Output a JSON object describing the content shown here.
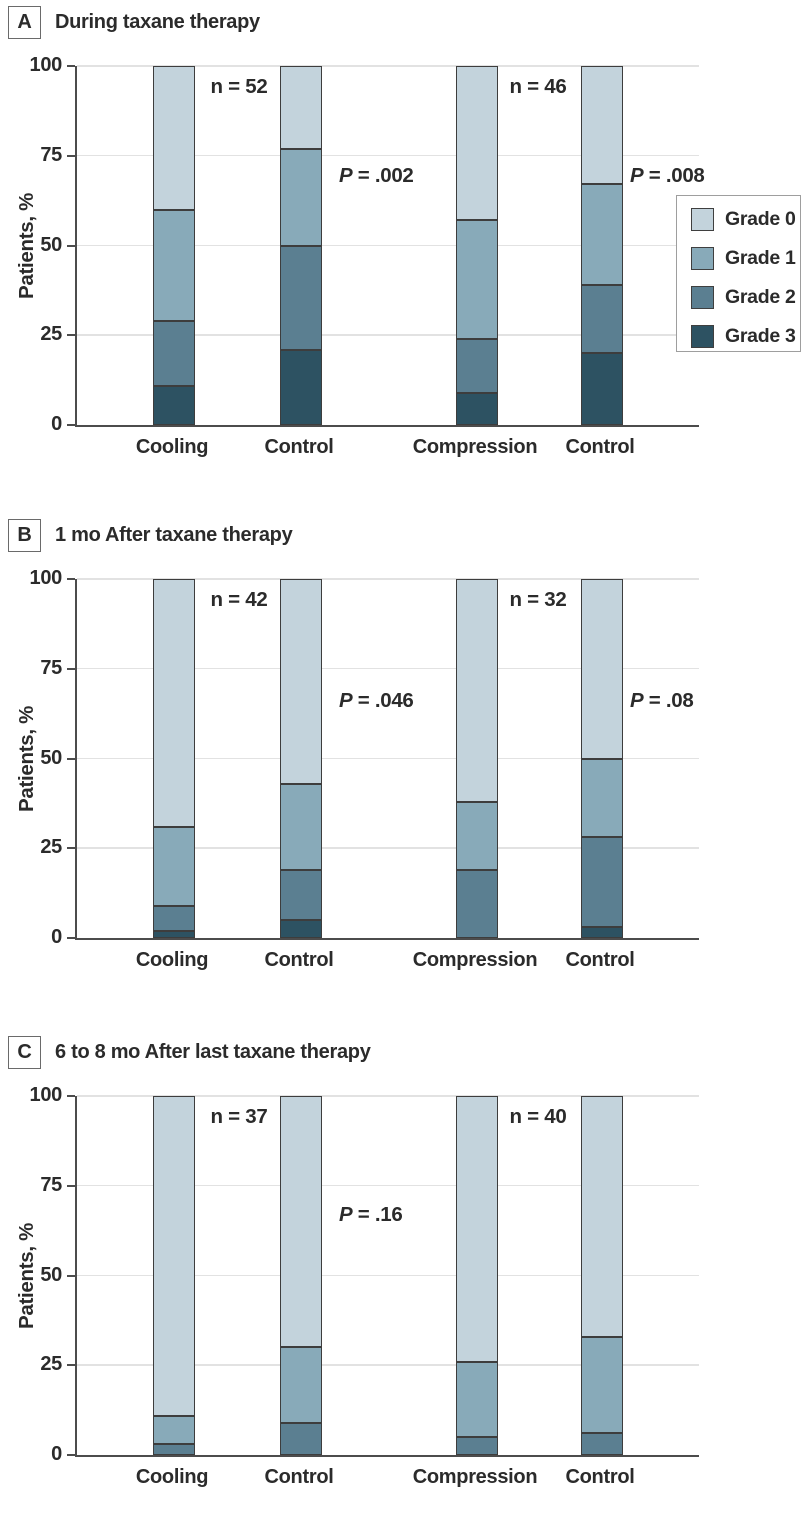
{
  "legend": {
    "items": [
      {
        "label": "Grade 0",
        "color": "#c3d3dc"
      },
      {
        "label": "Grade 1",
        "color": "#88aab9"
      },
      {
        "label": "Grade 2",
        "color": "#5b7f91"
      },
      {
        "label": "Grade 3",
        "color": "#2d5262"
      }
    ]
  },
  "axis_colors": {
    "grid": "#e2e2e2",
    "axis": "#4c4c4c",
    "segment_border": "#3d3d3d"
  },
  "chart_data": [
    {
      "type": "bar",
      "stacked": true,
      "panel_label": "A",
      "title": "During taxane therapy",
      "ylabel": "Patients, %",
      "ylim": [
        0,
        100
      ],
      "yticks": [
        0,
        25,
        50,
        75,
        100
      ],
      "grid": true,
      "legend_position": "right",
      "categories": [
        "Cooling",
        "Control",
        "Compression",
        "Control"
      ],
      "series": [
        {
          "name": "Grade 3",
          "color": "#2d5262",
          "values": [
            11,
            21,
            9,
            20
          ]
        },
        {
          "name": "Grade 2",
          "color": "#5b7f91",
          "values": [
            18,
            29,
            15,
            19
          ]
        },
        {
          "name": "Grade 1",
          "color": "#88aab9",
          "values": [
            31,
            27,
            33,
            28
          ]
        },
        {
          "name": "Grade 0",
          "color": "#c3d3dc",
          "values": [
            40,
            23,
            43,
            33
          ]
        }
      ],
      "n_labels": [
        "n = 52",
        "n = 46"
      ],
      "p_labels": [
        "P = .002",
        "P = .008"
      ]
    },
    {
      "type": "bar",
      "stacked": true,
      "panel_label": "B",
      "title": "1 mo After taxane therapy",
      "ylabel": "Patients, %",
      "ylim": [
        0,
        100
      ],
      "yticks": [
        0,
        25,
        50,
        75,
        100
      ],
      "grid": true,
      "categories": [
        "Cooling",
        "Control",
        "Compression",
        "Control"
      ],
      "series": [
        {
          "name": "Grade 3",
          "color": "#2d5262",
          "values": [
            2,
            5,
            0,
            3
          ]
        },
        {
          "name": "Grade 2",
          "color": "#5b7f91",
          "values": [
            7,
            14,
            19,
            25
          ]
        },
        {
          "name": "Grade 1",
          "color": "#88aab9",
          "values": [
            22,
            24,
            19,
            22
          ]
        },
        {
          "name": "Grade 0",
          "color": "#c3d3dc",
          "values": [
            69,
            57,
            62,
            50
          ]
        }
      ],
      "n_labels": [
        "n = 42",
        "n = 32"
      ],
      "p_labels": [
        "P = .046",
        "P = .08"
      ]
    },
    {
      "type": "bar",
      "stacked": true,
      "panel_label": "C",
      "title": "6 to 8 mo After last taxane therapy",
      "ylabel": "Patients, %",
      "ylim": [
        0,
        100
      ],
      "yticks": [
        0,
        25,
        50,
        75,
        100
      ],
      "grid": true,
      "categories": [
        "Cooling",
        "Control",
        "Compression",
        "Control"
      ],
      "series": [
        {
          "name": "Grade 3",
          "color": "#2d5262",
          "values": [
            0,
            0,
            0,
            0
          ]
        },
        {
          "name": "Grade 2",
          "color": "#5b7f91",
          "values": [
            3,
            9,
            5,
            6
          ]
        },
        {
          "name": "Grade 1",
          "color": "#88aab9",
          "values": [
            8,
            21,
            21,
            27
          ]
        },
        {
          "name": "Grade 0",
          "color": "#c3d3dc",
          "values": [
            89,
            70,
            74,
            67
          ]
        }
      ],
      "n_labels": [
        "n = 37",
        "n = 40"
      ],
      "p_labels": [
        "P = .16"
      ]
    }
  ]
}
